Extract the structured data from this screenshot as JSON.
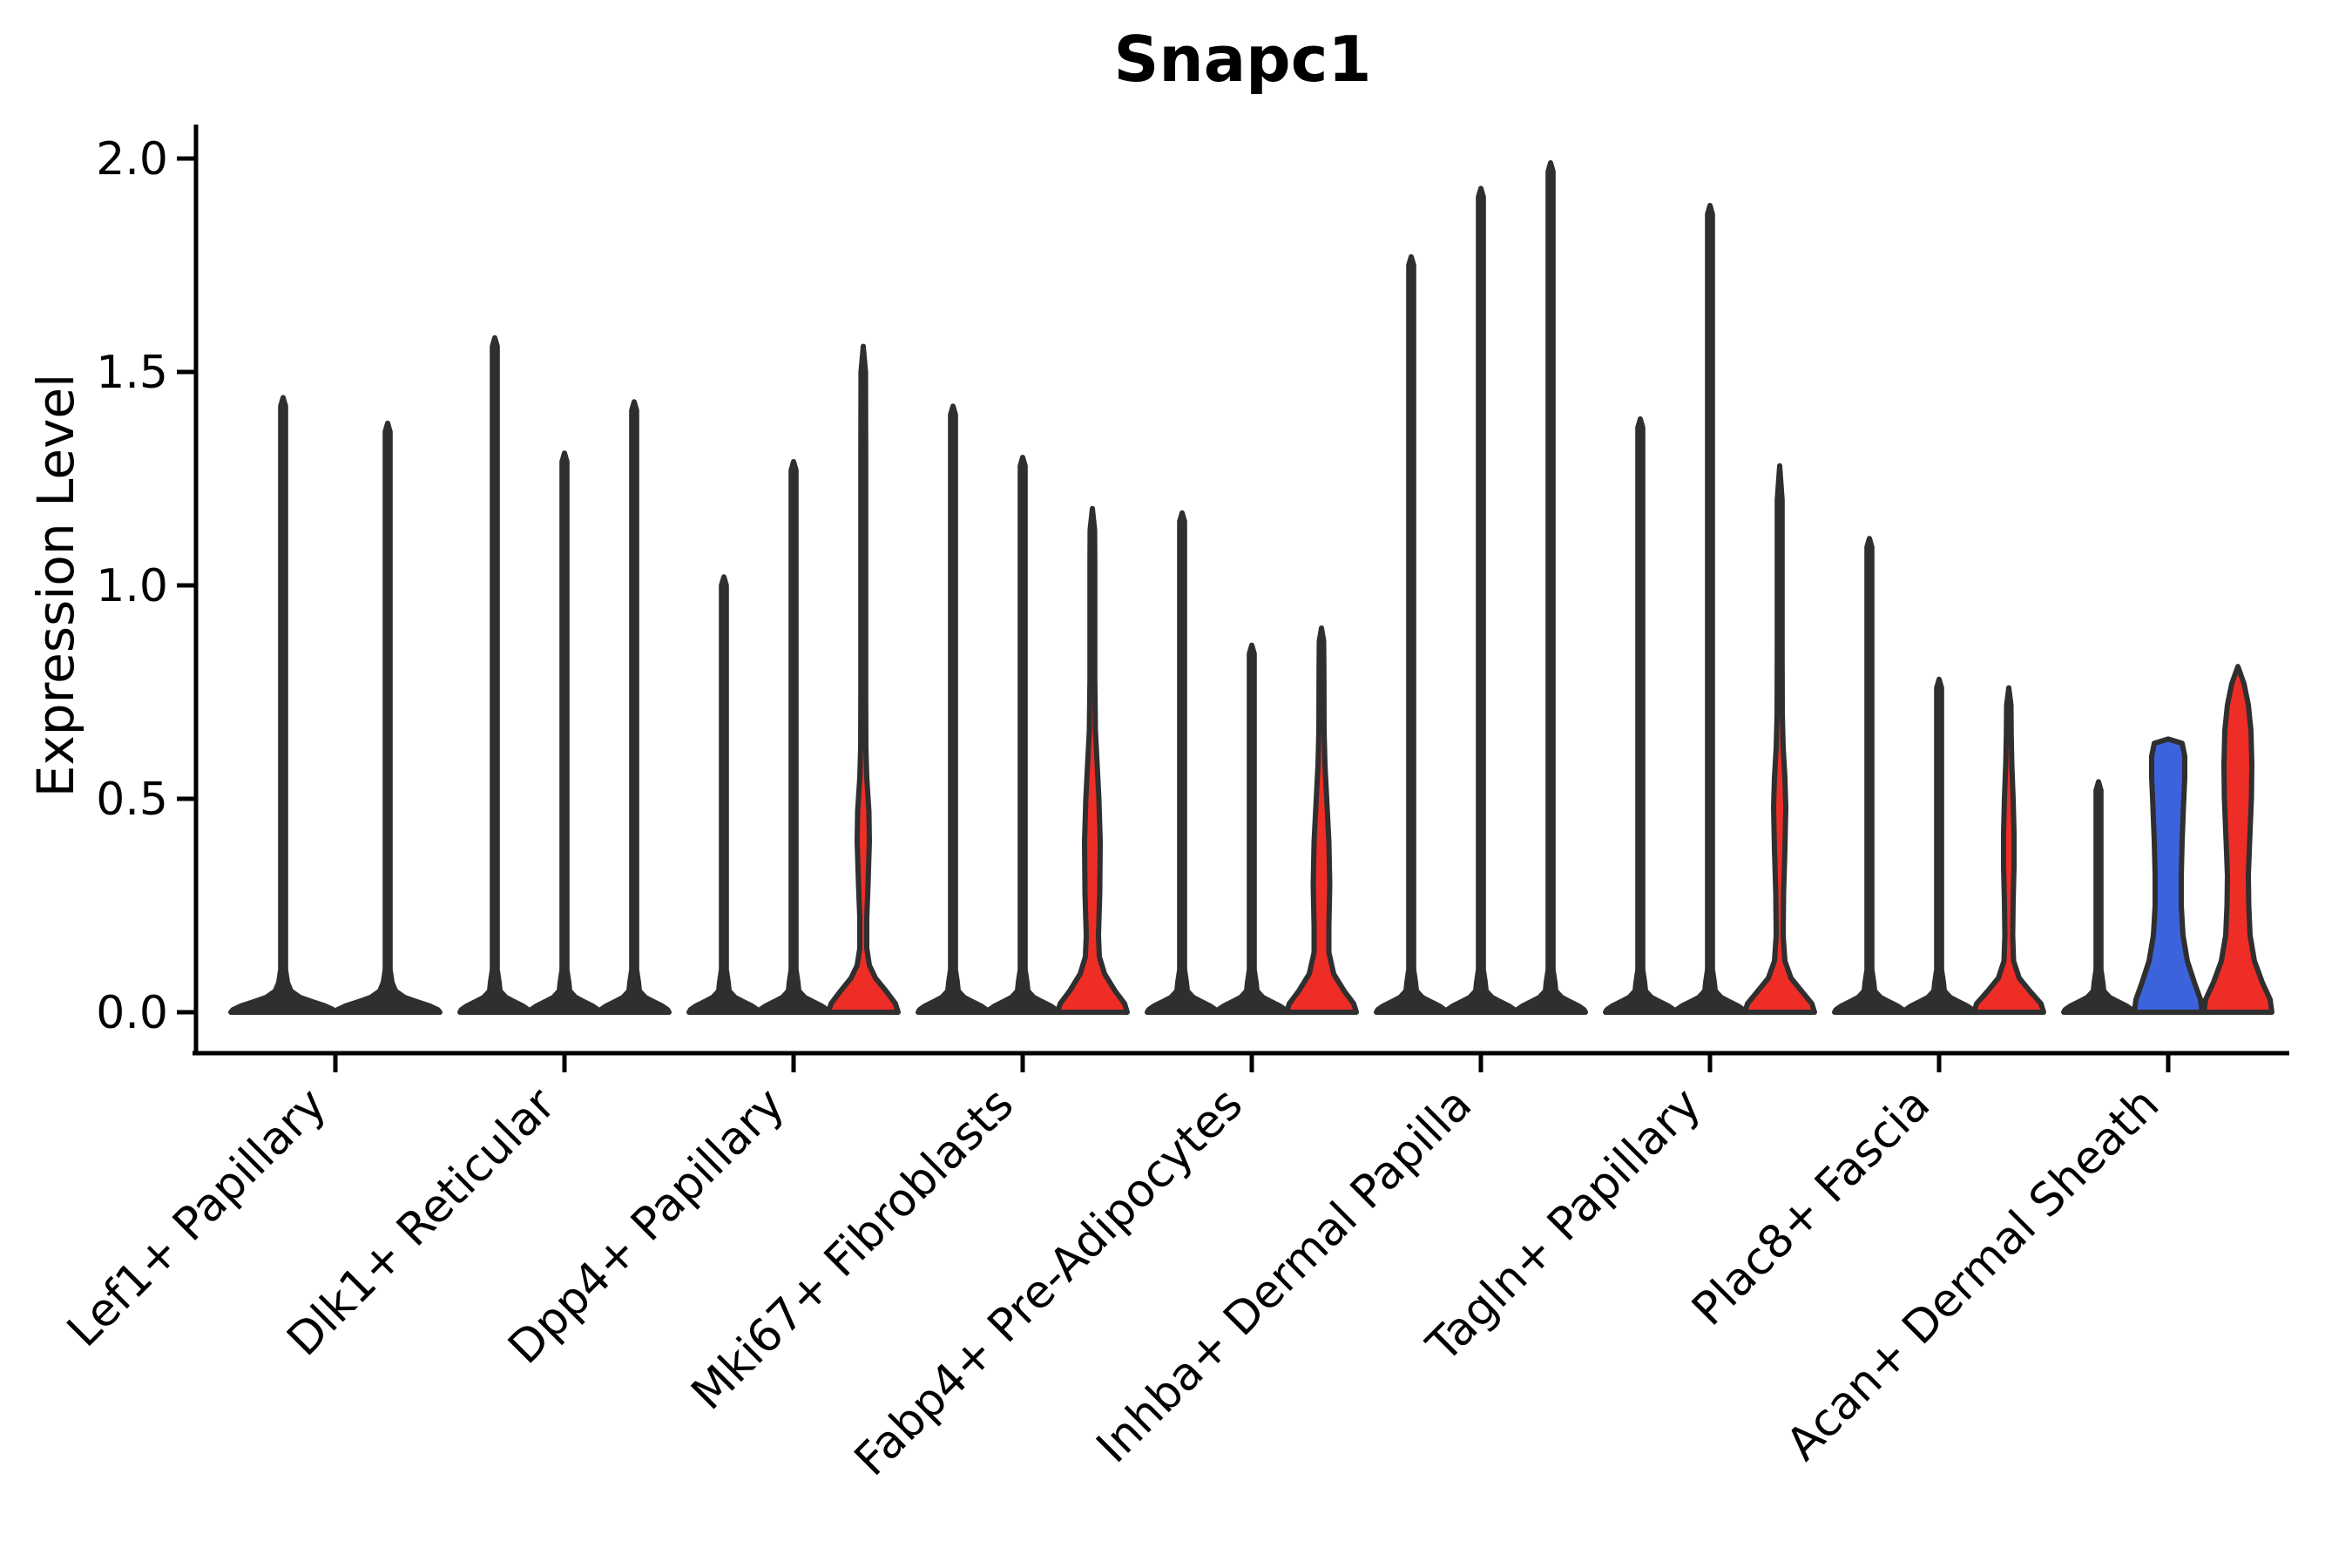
{
  "chart_data": {
    "type": "violin",
    "title": "Snapc1",
    "ylabel": "Expression Level",
    "yticks": [
      {
        "value": 0.0,
        "label": "0.0"
      },
      {
        "value": 0.5,
        "label": "0.5"
      },
      {
        "value": 1.0,
        "label": "1.0"
      },
      {
        "value": 1.5,
        "label": "1.5"
      },
      {
        "value": 2.0,
        "label": "2.0"
      }
    ],
    "ylim": [
      0,
      2.05
    ],
    "legend": "none",
    "grid": false,
    "categories": [
      "Lef1+ Papillary",
      "Dlk1+ Reticular",
      "Dpp4+ Papillary",
      "Mki67+ Fibroblasts",
      "Fabp4+ Pre-Adipocytes",
      "Inhba+ Dermal Papilla",
      "Tagln+ Papillary",
      "Plac8+ Fascia",
      "Acan+ Dermal Sheath"
    ],
    "colors": {
      "red": "#ee2d26",
      "blue": "#3d63dc",
      "outline": "#2f2f2f",
      "axis": "#000000"
    },
    "groups": [
      {
        "label": "Lef1+ Papillary",
        "violins": [
          {
            "max_expression": 1.44,
            "style": "spike",
            "fill": "none",
            "base_half": 60
          },
          {
            "max_expression": 1.38,
            "style": "spike",
            "fill": "none",
            "base_half": 60
          }
        ]
      },
      {
        "label": "Dlk1+ Reticular",
        "violins": [
          {
            "max_expression": 1.58,
            "style": "spike",
            "fill": "none",
            "base_half": 40
          },
          {
            "max_expression": 1.31,
            "style": "spike",
            "fill": "none",
            "base_half": 40
          },
          {
            "max_expression": 1.43,
            "style": "spike",
            "fill": "none",
            "base_half": 40
          }
        ]
      },
      {
        "label": "Dpp4+ Papillary",
        "violins": [
          {
            "max_expression": 1.02,
            "style": "spike",
            "fill": "none",
            "base_half": 40
          },
          {
            "max_expression": 1.29,
            "style": "spike",
            "fill": "none",
            "base_half": 40
          },
          {
            "max_expression": 1.56,
            "style": "shaped",
            "fill": "red",
            "profile": [
              [
                0,
                40
              ],
              [
                0.02,
                37
              ],
              [
                0.05,
                26
              ],
              [
                0.08,
                14
              ],
              [
                0.11,
                7
              ],
              [
                0.15,
                4
              ],
              [
                0.22,
                4
              ],
              [
                0.3,
                5.5
              ],
              [
                0.4,
                7
              ],
              [
                0.47,
                6.5
              ],
              [
                0.55,
                4
              ],
              [
                0.62,
                3
              ],
              [
                0.75,
                2.8
              ],
              [
                1.3,
                2.8
              ],
              [
                1.5,
                2.6
              ],
              [
                1.56,
                0
              ]
            ]
          }
        ]
      },
      {
        "label": "Mki67+ Fibroblasts",
        "violins": [
          {
            "max_expression": 1.42,
            "style": "spike",
            "fill": "none",
            "base_half": 40
          },
          {
            "max_expression": 1.3,
            "style": "spike",
            "fill": "none",
            "base_half": 40
          },
          {
            "max_expression": 1.18,
            "style": "shaped",
            "fill": "red",
            "profile": [
              [
                0,
                40
              ],
              [
                0.02,
                37
              ],
              [
                0.05,
                26
              ],
              [
                0.09,
                14
              ],
              [
                0.13,
                8
              ],
              [
                0.18,
                7
              ],
              [
                0.28,
                8.5
              ],
              [
                0.4,
                9
              ],
              [
                0.5,
                7.5
              ],
              [
                0.6,
                5
              ],
              [
                0.66,
                3.5
              ],
              [
                0.78,
                2.8
              ],
              [
                1.05,
                2.8
              ],
              [
                1.13,
                2.6
              ],
              [
                1.18,
                0
              ]
            ]
          }
        ]
      },
      {
        "label": "Fabp4+ Pre-Adipocytes",
        "violins": [
          {
            "max_expression": 1.17,
            "style": "spike",
            "fill": "none",
            "base_half": 40
          },
          {
            "max_expression": 0.86,
            "style": "spike",
            "fill": "none",
            "base_half": 40
          },
          {
            "max_expression": 0.9,
            "style": "shaped",
            "fill": "red",
            "profile": [
              [
                0,
                40
              ],
              [
                0.02,
                37
              ],
              [
                0.05,
                26
              ],
              [
                0.09,
                14
              ],
              [
                0.14,
                8.5
              ],
              [
                0.2,
                8.5
              ],
              [
                0.3,
                9.5
              ],
              [
                0.4,
                8.5
              ],
              [
                0.5,
                6
              ],
              [
                0.58,
                4
              ],
              [
                0.66,
                3
              ],
              [
                0.8,
                2.8
              ],
              [
                0.87,
                2.5
              ],
              [
                0.9,
                0
              ]
            ]
          }
        ]
      },
      {
        "label": "Inhba+ Dermal Papilla",
        "violins": [
          {
            "max_expression": 1.77,
            "style": "spike",
            "fill": "none",
            "base_half": 40
          },
          {
            "max_expression": 1.93,
            "style": "spike",
            "fill": "none",
            "base_half": 40
          },
          {
            "max_expression": 1.99,
            "style": "spike",
            "fill": "none",
            "base_half": 40
          }
        ]
      },
      {
        "label": "Tagln+ Papillary",
        "violins": [
          {
            "max_expression": 1.39,
            "style": "spike",
            "fill": "none",
            "base_half": 40
          },
          {
            "max_expression": 1.89,
            "style": "spike",
            "fill": "none",
            "base_half": 40
          },
          {
            "max_expression": 1.28,
            "style": "shaped",
            "fill": "red",
            "profile": [
              [
                0,
                40
              ],
              [
                0.02,
                37
              ],
              [
                0.05,
                25
              ],
              [
                0.08,
                13
              ],
              [
                0.12,
                6
              ],
              [
                0.18,
                4
              ],
              [
                0.28,
                4.5
              ],
              [
                0.38,
                6
              ],
              [
                0.48,
                7
              ],
              [
                0.55,
                6
              ],
              [
                0.62,
                4
              ],
              [
                0.7,
                3
              ],
              [
                0.85,
                2.8
              ],
              [
                1.2,
                2.8
              ],
              [
                1.28,
                0
              ]
            ]
          }
        ]
      },
      {
        "label": "Plac8+ Fascia",
        "violins": [
          {
            "max_expression": 1.11,
            "style": "spike",
            "fill": "none",
            "base_half": 40
          },
          {
            "max_expression": 0.78,
            "style": "spike",
            "fill": "none",
            "base_half": 40
          },
          {
            "max_expression": 0.76,
            "style": "shaped",
            "fill": "red",
            "profile": [
              [
                0,
                40
              ],
              [
                0.02,
                37
              ],
              [
                0.05,
                24
              ],
              [
                0.08,
                12
              ],
              [
                0.12,
                5.5
              ],
              [
                0.18,
                4.5
              ],
              [
                0.26,
                5
              ],
              [
                0.34,
                6
              ],
              [
                0.42,
                6
              ],
              [
                0.5,
                5
              ],
              [
                0.58,
                3.5
              ],
              [
                0.65,
                2.8
              ],
              [
                0.72,
                2.5
              ],
              [
                0.76,
                0
              ]
            ]
          }
        ]
      },
      {
        "label": "Acan+ Dermal Sheath",
        "violins": [
          {
            "max_expression": 0.54,
            "style": "spike",
            "fill": "none",
            "base_half": 40
          },
          {
            "max_expression": 0.64,
            "style": "shaped",
            "fill": "blue",
            "profile": [
              [
                0,
                39
              ],
              [
                0.03,
                37
              ],
              [
                0.07,
                30
              ],
              [
                0.12,
                22
              ],
              [
                0.18,
                17
              ],
              [
                0.25,
                15
              ],
              [
                0.32,
                15
              ],
              [
                0.4,
                16
              ],
              [
                0.48,
                17.5
              ],
              [
                0.55,
                19
              ],
              [
                0.6,
                19
              ],
              [
                0.63,
                16
              ],
              [
                0.64,
                0
              ]
            ]
          },
          {
            "max_expression": 0.81,
            "style": "shaped",
            "fill": "red",
            "profile": [
              [
                0,
                39
              ],
              [
                0.03,
                37
              ],
              [
                0.07,
                28
              ],
              [
                0.12,
                19
              ],
              [
                0.18,
                14
              ],
              [
                0.25,
                12.5
              ],
              [
                0.32,
                12
              ],
              [
                0.4,
                13.5
              ],
              [
                0.5,
                15.5
              ],
              [
                0.58,
                16
              ],
              [
                0.66,
                15
              ],
              [
                0.72,
                12
              ],
              [
                0.77,
                7
              ],
              [
                0.81,
                0
              ]
            ]
          }
        ]
      }
    ]
  }
}
